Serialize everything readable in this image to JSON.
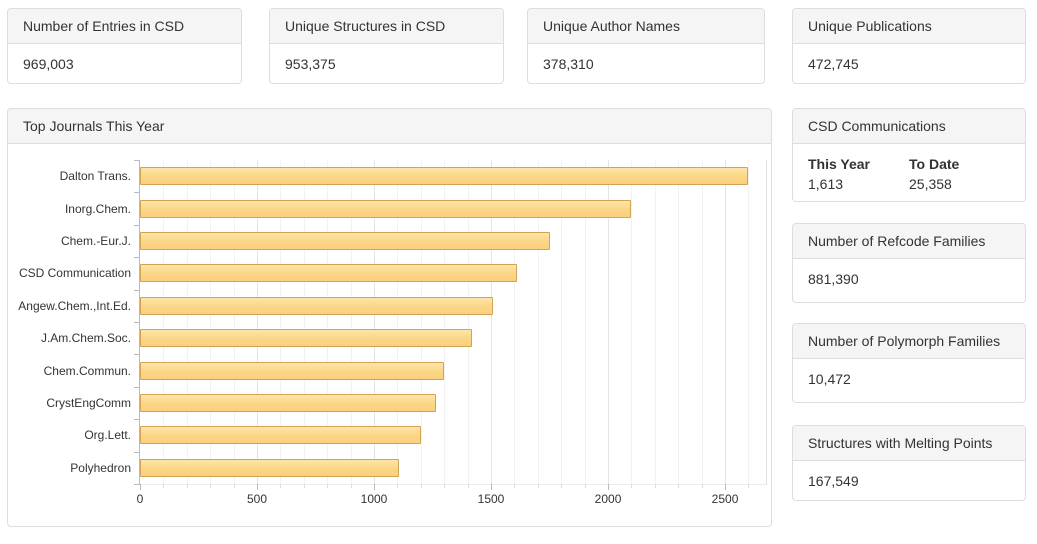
{
  "stat_cards": [
    {
      "title": "Number of Entries in CSD",
      "value": "969,003"
    },
    {
      "title": "Unique Structures in CSD",
      "value": "953,375"
    },
    {
      "title": "Unique Author Names",
      "value": "378,310"
    },
    {
      "title": "Unique Publications",
      "value": "472,745"
    }
  ],
  "chart_panel": {
    "title": "Top Journals This Year"
  },
  "chart_data": {
    "type": "bar",
    "orientation": "horizontal",
    "title": "Top Journals This Year",
    "categories": [
      "Dalton Trans.",
      "Inorg.Chem.",
      "Chem.-Eur.J.",
      "CSD Communication",
      "Angew.Chem.,Int.Ed.",
      "J.Am.Chem.Soc.",
      "Chem.Commun.",
      "CrystEngComm",
      "Org.Lett.",
      "Polyhedron"
    ],
    "values": [
      2600,
      2100,
      1750,
      1613,
      1510,
      1420,
      1300,
      1265,
      1200,
      1105
    ],
    "xlabel": "",
    "ylabel": "",
    "xlim": [
      0,
      2675
    ],
    "x_tick_values": [
      0,
      500,
      1000,
      1500,
      2000,
      2500
    ],
    "x_tick_labels": [
      "0",
      "500",
      "1000",
      "1500",
      "2000",
      "2500"
    ],
    "minor_grid_step": 100,
    "grid": true,
    "legend": false,
    "bar_fill": "#fbd98d",
    "bar_border": "#d2a355"
  },
  "sidebar": {
    "csd_communications": {
      "title": "CSD Communications",
      "columns": [
        {
          "label": "This Year",
          "value": "1,613"
        },
        {
          "label": "To Date",
          "value": "25,358"
        }
      ]
    },
    "refcode_families": {
      "title": "Number of Refcode Families",
      "value": "881,390"
    },
    "polymorph_families": {
      "title": "Number of Polymorph Families",
      "value": "10,472"
    },
    "melting_points": {
      "title": "Structures with Melting Points",
      "value": "167,549"
    }
  },
  "colors": {
    "panel_border": "#dddddd",
    "panel_header_bg": "#f5f5f5",
    "text": "#333333",
    "bar_fill": "#fbd98d",
    "bar_border": "#d2a355",
    "grid_minor": "#f2f2f2",
    "grid_major": "#e4e4e4",
    "axis_line": "#b9b9b9"
  }
}
